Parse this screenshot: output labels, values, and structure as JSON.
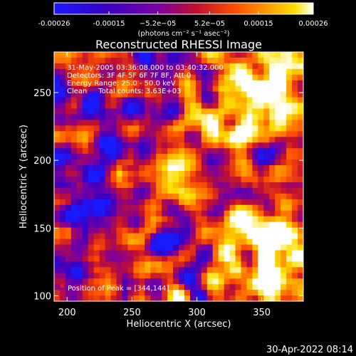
{
  "chart_data": {
    "type": "heatmap",
    "title": "Reconstructed RHESSI Image",
    "xlabel": "Heliocentric X (arcsec)",
    "ylabel": "Heliocentric Y (arcsec)",
    "xlim": [
      190,
      382
    ],
    "ylim": [
      96,
      280
    ],
    "xticks": [
      200,
      250,
      300,
      350
    ],
    "yticks": [
      100,
      150,
      200,
      250
    ],
    "colorbar": {
      "range": [
        -0.00026,
        0.00026
      ],
      "tick_values": [
        -0.00026,
        -0.00015,
        -5.2e-05,
        5.2e-05,
        0.00015,
        0.00026
      ],
      "tick_labels": [
        "-0.00026",
        "-0.00015",
        "−5.2e−05",
        "5.2e−05",
        "0.00015",
        "0.00026"
      ],
      "units_label": "(photons cm⁻² s⁻¹ asec⁻²)",
      "colors": [
        "#1a1aff",
        "#3a00c0",
        "#7a00a0",
        "#c01030",
        "#ff5000",
        "#ff9a00",
        "#ffe000",
        "#ffffff"
      ]
    },
    "peak": [
      344,
      144
    ],
    "annotations": [
      "31-May-2005 03:36:08.000 to 03:40:32.000",
      "Detectors: 3F 4F 5F 6F 7F 8F, Att 0",
      "Energy Range: 25.0 - 50.0 keV",
      "Clean     Total counts: 3.63E+03",
      "Position of Peak = [344,144]"
    ]
  },
  "footer": {
    "timestamp": "30-Apr-2022 08:14"
  }
}
